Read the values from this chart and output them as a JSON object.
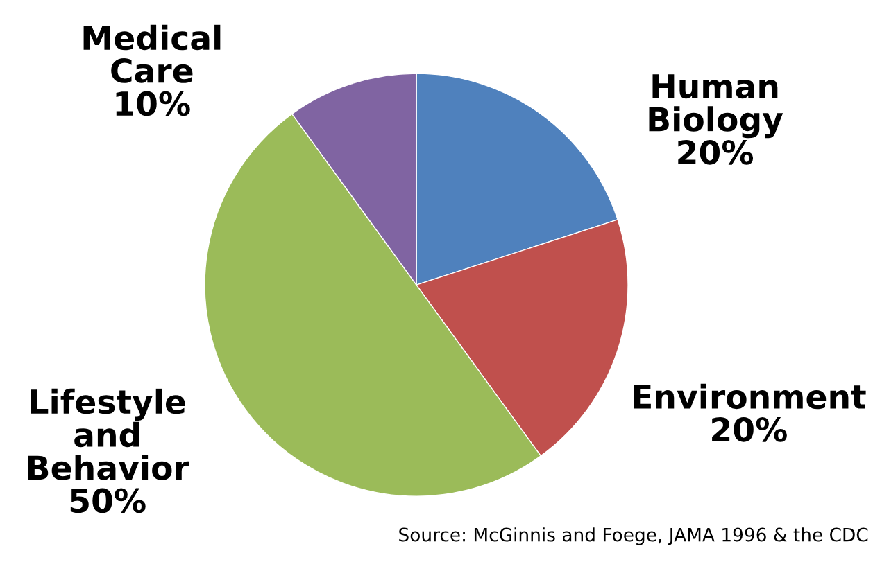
{
  "chart_data": {
    "type": "pie",
    "categories": [
      "Human\nBiology",
      "Environment",
      "Lifestyle\nand\nBehavior",
      "Medical\nCare"
    ],
    "values": [
      20,
      20,
      50,
      10
    ],
    "value_labels": [
      "20%",
      "20%",
      "50%",
      "10%"
    ],
    "colors": [
      "#4f81bd",
      "#c0504d",
      "#9bbb59",
      "#8064a2"
    ],
    "annotations": [
      "Source: McGinnis and Foege, JAMA 1996 & the CDC"
    ]
  }
}
